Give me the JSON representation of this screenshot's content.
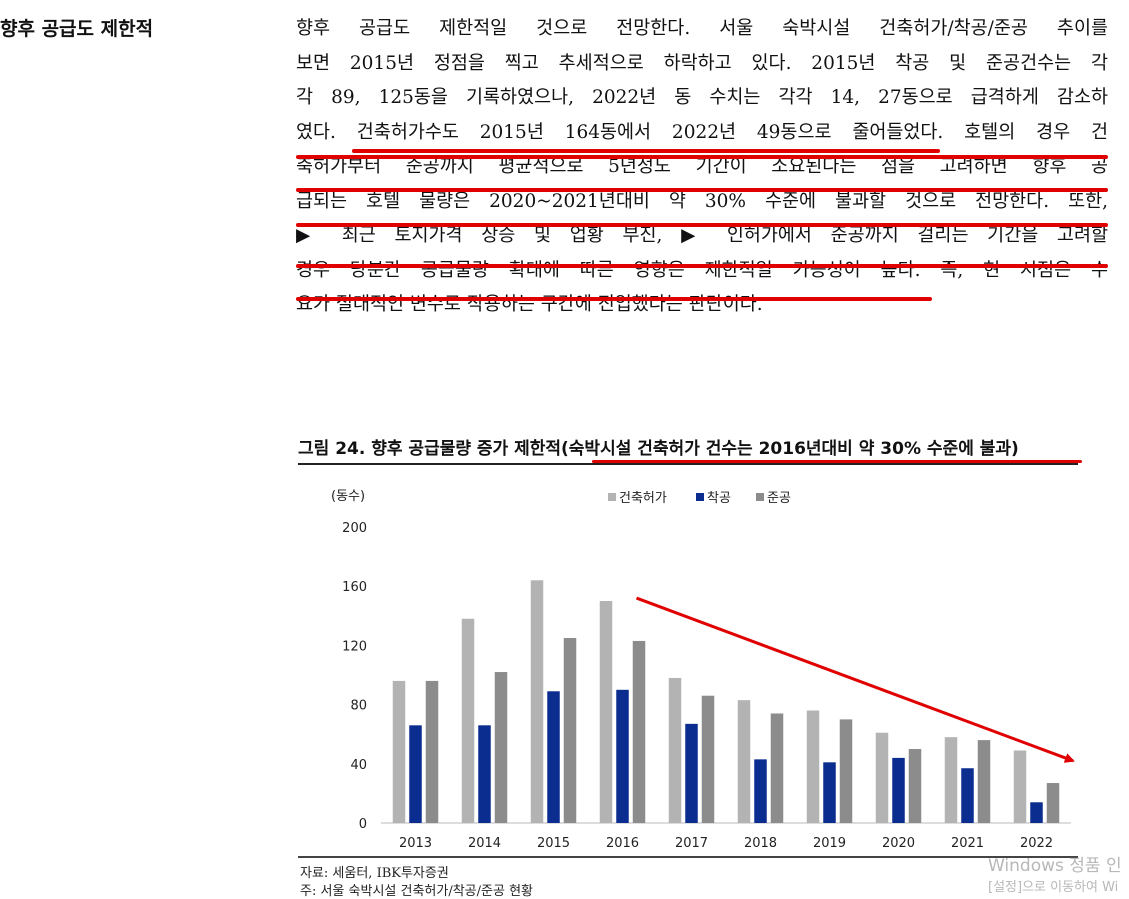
{
  "side_heading": "향후 공급도 제한적",
  "paragraph": [
    "향후 공급도 제한적일 것으로 전망한다. 서울 숙박시설 건축허가/착공/준공 추이를",
    "보면 2015년 정점을 찍고 추세적으로 하락하고 있다. 2015년 착공 및 준공건수는 각",
    "각  89, 125동을 기록하였으나, 2022년 동 수치는 각각 14, 27동으로 급격하게 감소하",
    "였다. 건축허가수도 2015년 164동에서 2022년 49동으로 줄어들었다. 호텔의 경우 건",
    "축허가부터 준공까지 평균적으로 5년정도 기간이 소요된다는 점을 고려하면 향후 공",
    "급되는 호텔 물량은 2020~2021년대비 약 30% 수준에 불과할 것으로 전망한다. 또한,",
    "▶ 최근 토지가격 상승 및 업황 부진, ▶ 인허가에서 준공까지 걸리는 기간을 고려할",
    "경우 당분간 공급물량 확대에 따른 영향은 제한적일 가능성이 높다. 즉, 현 시점은 수",
    "요가 절대적인 변수로 작용하는 구간에 진입했다는 판단이다."
  ],
  "figure": {
    "caption": "그림 24. 향후 공급물량 증가 제한적(숙박시설 건축허가 건수는 2016년대비 약 30% 수준에 불과)",
    "source": "자료: 세움터, IBK투자증권",
    "note": "주: 서울 숙박시설 건축허가/착공/준공 현황"
  },
  "chart_data": {
    "type": "bar",
    "title": "",
    "ylabel": "(동수)",
    "xlabel": "",
    "categories": [
      "2013",
      "2014",
      "2015",
      "2016",
      "2017",
      "2018",
      "2019",
      "2020",
      "2021",
      "2022"
    ],
    "series": [
      {
        "name": "건축허가",
        "color": "#b3b3b3",
        "values": [
          96,
          138,
          164,
          150,
          98,
          83,
          76,
          61,
          58,
          49
        ]
      },
      {
        "name": "착공",
        "color": "#0b2d8f",
        "values": [
          66,
          66,
          89,
          90,
          67,
          43,
          41,
          44,
          37,
          14
        ]
      },
      {
        "name": "준공",
        "color": "#8c8c8c",
        "values": [
          96,
          102,
          125,
          123,
          86,
          74,
          70,
          50,
          56,
          27
        ]
      }
    ],
    "ylim": [
      0,
      200
    ],
    "yticks": [
      0,
      40,
      80,
      120,
      160,
      200
    ],
    "grid": false,
    "legend_position": "top-center",
    "annotation": "red downward trend arrow from 2016 to 2022"
  },
  "watermark": {
    "line1": "Windows 정품 인",
    "line2": "[설정]으로 이동하여 Wi"
  },
  "colors": {
    "highlight_red": "#e00000",
    "arrow_red": "#e00000"
  }
}
